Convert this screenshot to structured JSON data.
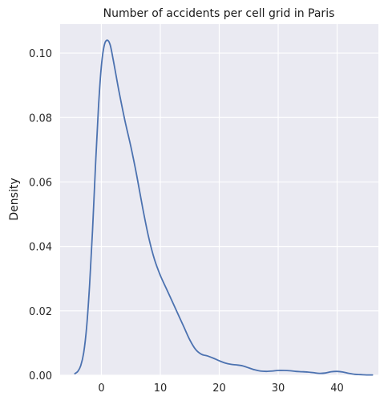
{
  "chart_data": {
    "type": "line",
    "title": "Number of accidents per cell grid in Paris",
    "xlabel": "",
    "ylabel": "Density",
    "xlim": [
      -7,
      47
    ],
    "ylim": [
      0,
      0.109
    ],
    "xticks": [
      0,
      10,
      20,
      30,
      40
    ],
    "xtick_labels": [
      "0",
      "10",
      "20",
      "30",
      "40"
    ],
    "yticks": [
      0,
      0.02,
      0.04,
      0.06,
      0.08,
      0.1
    ],
    "ytick_labels": [
      "0.00",
      "0.02",
      "0.04",
      "0.06",
      "0.08",
      "0.10"
    ],
    "grid": true,
    "legend": "none",
    "colors": {
      "background": "#eaeaf2",
      "grid": "#ffffff",
      "line": "#4c72b0"
    },
    "series": [
      {
        "x": [
          -4.5,
          -4.0,
          -3.5,
          -3.0,
          -2.5,
          -2.0,
          -1.5,
          -1.0,
          -0.5,
          0.0,
          0.5,
          1.0,
          1.5,
          2.0,
          2.5,
          3.0,
          4.0,
          5.0,
          6.0,
          7.0,
          8.0,
          9.0,
          10.0,
          11.0,
          12.0,
          13.0,
          14.0,
          15.0,
          16.0,
          17.0,
          18.0,
          19.0,
          20.0,
          21.0,
          22.0,
          23.0,
          24.0,
          25.0,
          26.0,
          27.0,
          28.0,
          29.0,
          30.0,
          31.0,
          32.0,
          33.0,
          34.0,
          35.0,
          36.0,
          37.0,
          38.0,
          39.0,
          40.0,
          41.0,
          42.0,
          43.0,
          44.0,
          45.0,
          46.0
        ],
        "y": [
          0.0005,
          0.0012,
          0.003,
          0.007,
          0.015,
          0.028,
          0.045,
          0.065,
          0.083,
          0.096,
          0.1025,
          0.104,
          0.1025,
          0.098,
          0.093,
          0.088,
          0.079,
          0.071,
          0.062,
          0.052,
          0.043,
          0.036,
          0.031,
          0.027,
          0.023,
          0.019,
          0.015,
          0.011,
          0.008,
          0.0065,
          0.006,
          0.0053,
          0.0045,
          0.0038,
          0.0034,
          0.0032,
          0.0029,
          0.0023,
          0.0017,
          0.0013,
          0.0012,
          0.0013,
          0.0015,
          0.0015,
          0.0014,
          0.0012,
          0.0011,
          0.001,
          0.0008,
          0.0006,
          0.0007,
          0.0011,
          0.0012,
          0.001,
          0.0006,
          0.0003,
          0.0002,
          0.0001,
          0.0001
        ]
      }
    ]
  }
}
